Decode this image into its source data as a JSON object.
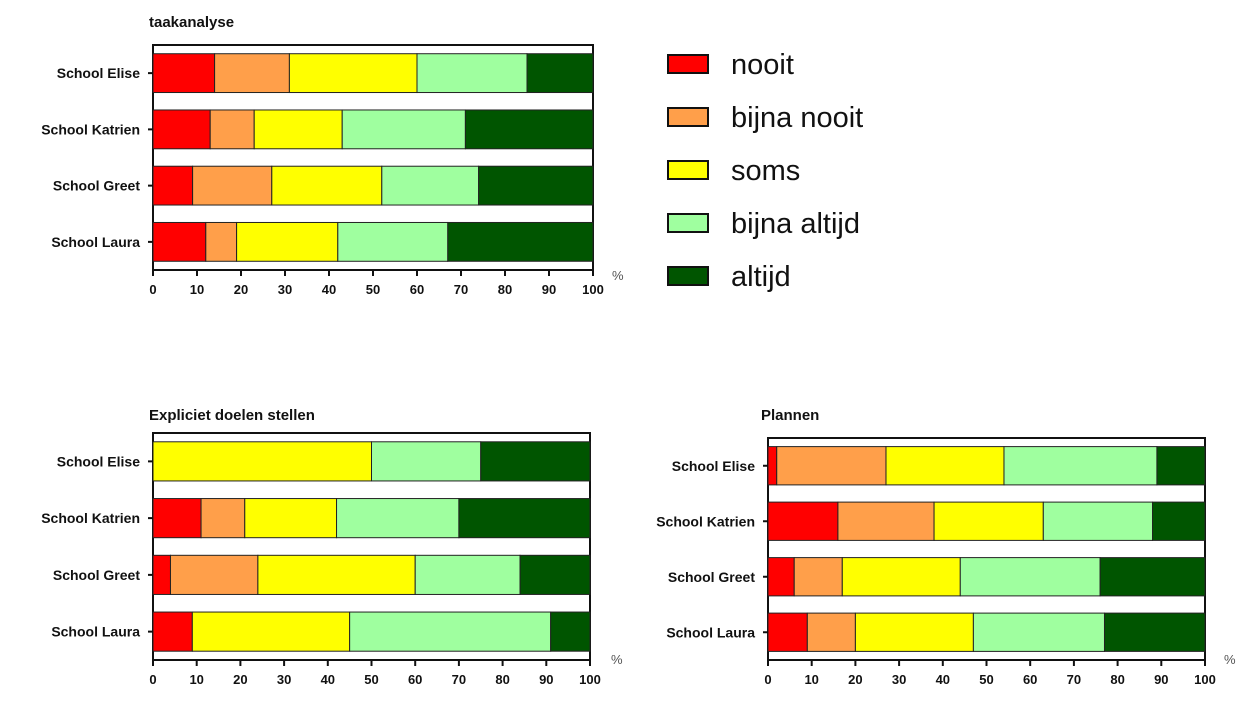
{
  "legend": {
    "items": [
      {
        "label": "nooit",
        "color": "#ff0000"
      },
      {
        "label": "bijna nooit",
        "color": "#ff9f4a"
      },
      {
        "label": "soms",
        "color": "#ffff00"
      },
      {
        "label": "bijna altijd",
        "color": "#9fff9f"
      },
      {
        "label": "altijd",
        "color": "#005500"
      }
    ]
  },
  "chart_data": [
    {
      "type": "bar",
      "orientation": "horizontal",
      "stacked": true,
      "title": "taakanalyse",
      "unit": "%",
      "xlim": [
        0,
        100
      ],
      "xticks": [
        "0",
        "10",
        "20",
        "30",
        "40",
        "50",
        "60",
        "70",
        "80",
        "90",
        "100"
      ],
      "categories": [
        "School Elise",
        "School Katrien",
        "School Greet",
        "School Laura"
      ],
      "series": [
        {
          "name": "nooit",
          "values": [
            14,
            13,
            9,
            12
          ]
        },
        {
          "name": "bijna nooit",
          "values": [
            17,
            10,
            18,
            7
          ]
        },
        {
          "name": "soms",
          "values": [
            29,
            20,
            25,
            23
          ]
        },
        {
          "name": "bijna altijd",
          "values": [
            25,
            28,
            22,
            25
          ]
        },
        {
          "name": "altijd",
          "values": [
            15,
            29,
            26,
            33
          ]
        }
      ]
    },
    {
      "type": "bar",
      "orientation": "horizontal",
      "stacked": true,
      "title": "Expliciet doelen stellen",
      "unit": "%",
      "xlim": [
        0,
        100
      ],
      "xticks": [
        "0",
        "10",
        "20",
        "30",
        "40",
        "50",
        "60",
        "70",
        "80",
        "90",
        "100"
      ],
      "categories": [
        "School Elise",
        "School Katrien",
        "School Greet",
        "School Laura"
      ],
      "series": [
        {
          "name": "nooit",
          "values": [
            0,
            11,
            4,
            9
          ]
        },
        {
          "name": "bijna nooit",
          "values": [
            0,
            10,
            20,
            0
          ]
        },
        {
          "name": "soms",
          "values": [
            50,
            21,
            36,
            36
          ]
        },
        {
          "name": "bijna altijd",
          "values": [
            25,
            28,
            24,
            46
          ]
        },
        {
          "name": "altijd",
          "values": [
            25,
            30,
            16,
            9
          ]
        }
      ]
    },
    {
      "type": "bar",
      "orientation": "horizontal",
      "stacked": true,
      "title": "Plannen",
      "unit": "%",
      "xlim": [
        0,
        100
      ],
      "xticks": [
        "0",
        "10",
        "20",
        "30",
        "40",
        "50",
        "60",
        "70",
        "80",
        "90",
        "100"
      ],
      "categories": [
        "School Elise",
        "School Katrien",
        "School Greet",
        "School Laura"
      ],
      "series": [
        {
          "name": "nooit",
          "values": [
            2,
            16,
            6,
            9
          ]
        },
        {
          "name": "bijna nooit",
          "values": [
            25,
            22,
            11,
            11
          ]
        },
        {
          "name": "soms",
          "values": [
            27,
            25,
            27,
            27
          ]
        },
        {
          "name": "bijna altijd",
          "values": [
            35,
            25,
            32,
            30
          ]
        },
        {
          "name": "altijd",
          "values": [
            11,
            12,
            24,
            23
          ]
        }
      ]
    }
  ]
}
